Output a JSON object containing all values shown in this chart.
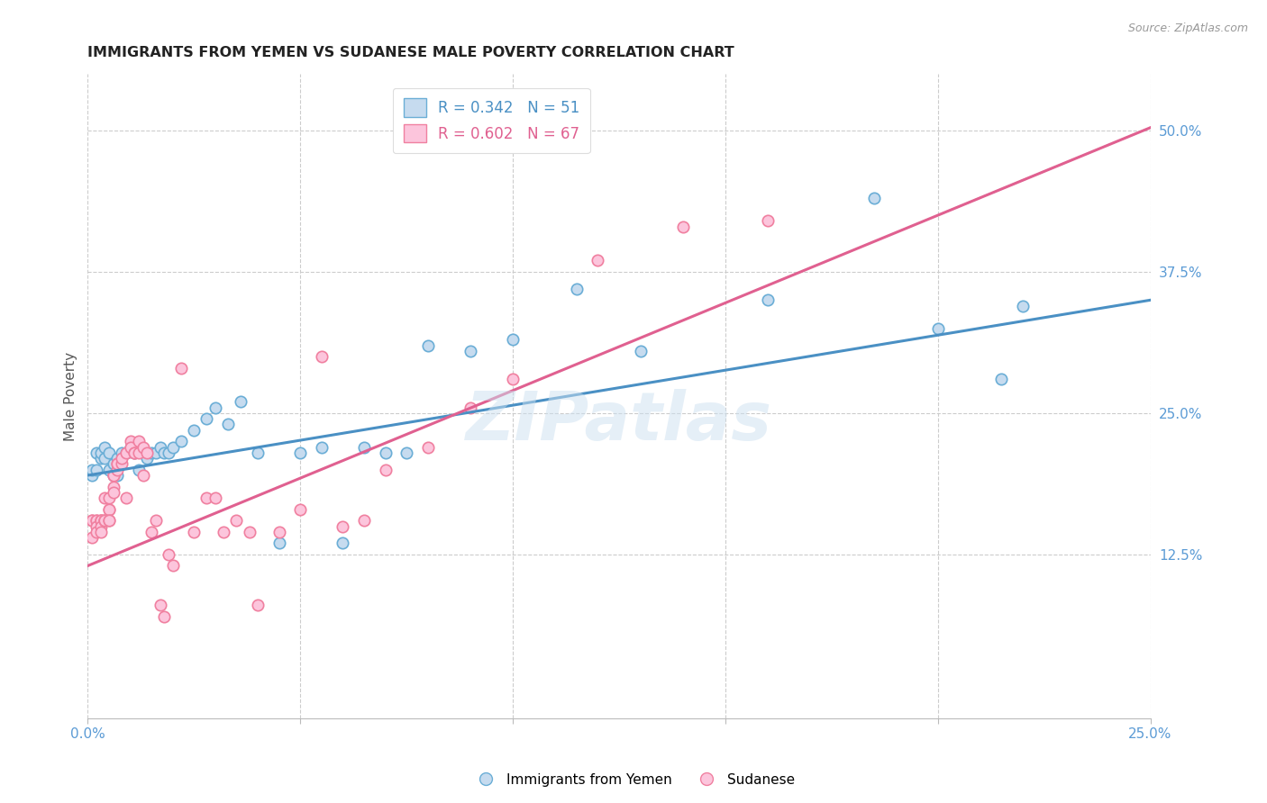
{
  "title": "IMMIGRANTS FROM YEMEN VS SUDANESE MALE POVERTY CORRELATION CHART",
  "source": "Source: ZipAtlas.com",
  "ylabel": "Male Poverty",
  "right_ytick_labels": [
    "50.0%",
    "37.5%",
    "25.0%",
    "12.5%"
  ],
  "right_ytick_values": [
    0.5,
    0.375,
    0.25,
    0.125
  ],
  "legend_blue_r": "R = 0.342",
  "legend_blue_n": "N = 51",
  "legend_pink_r": "R = 0.602",
  "legend_pink_n": "N = 67",
  "watermark": "ZIPatlas",
  "blue_color": "#6baed6",
  "blue_fill": "#c6dbef",
  "pink_color": "#f080a0",
  "pink_fill": "#fcc5dc",
  "trendline_blue": "#4a90c4",
  "trendline_pink": "#e06090",
  "trendline_dashed_color": "#f0b0c8",
  "xlim": [
    0.0,
    0.25
  ],
  "ylim": [
    -0.02,
    0.55
  ],
  "x_ticks": [
    0.0,
    0.05,
    0.1,
    0.15,
    0.2,
    0.25
  ],
  "x_tick_labels_show": [
    "0.0%",
    "",
    "",
    "",
    "",
    "25.0%"
  ],
  "blue_intercept": 0.195,
  "blue_slope": 0.62,
  "pink_intercept": 0.115,
  "pink_slope": 1.55,
  "blue_points_x": [
    0.001,
    0.001,
    0.002,
    0.002,
    0.003,
    0.003,
    0.004,
    0.004,
    0.005,
    0.005,
    0.006,
    0.006,
    0.007,
    0.007,
    0.008,
    0.009,
    0.01,
    0.011,
    0.012,
    0.013,
    0.014,
    0.015,
    0.016,
    0.017,
    0.018,
    0.019,
    0.02,
    0.022,
    0.025,
    0.028,
    0.03,
    0.033,
    0.036,
    0.04,
    0.045,
    0.05,
    0.055,
    0.06,
    0.065,
    0.07,
    0.075,
    0.08,
    0.09,
    0.1,
    0.115,
    0.13,
    0.16,
    0.185,
    0.2,
    0.215,
    0.22
  ],
  "blue_points_y": [
    0.195,
    0.2,
    0.2,
    0.215,
    0.21,
    0.215,
    0.21,
    0.22,
    0.2,
    0.215,
    0.205,
    0.195,
    0.21,
    0.195,
    0.215,
    0.215,
    0.22,
    0.215,
    0.2,
    0.215,
    0.21,
    0.215,
    0.215,
    0.22,
    0.215,
    0.215,
    0.22,
    0.225,
    0.235,
    0.245,
    0.255,
    0.24,
    0.26,
    0.215,
    0.135,
    0.215,
    0.22,
    0.135,
    0.22,
    0.215,
    0.215,
    0.31,
    0.305,
    0.315,
    0.36,
    0.305,
    0.35,
    0.44,
    0.325,
    0.28,
    0.345
  ],
  "pink_points_x": [
    0.001,
    0.001,
    0.001,
    0.002,
    0.002,
    0.002,
    0.002,
    0.003,
    0.003,
    0.003,
    0.003,
    0.003,
    0.004,
    0.004,
    0.004,
    0.004,
    0.005,
    0.005,
    0.005,
    0.005,
    0.005,
    0.006,
    0.006,
    0.006,
    0.006,
    0.007,
    0.007,
    0.007,
    0.008,
    0.008,
    0.009,
    0.009,
    0.01,
    0.01,
    0.011,
    0.011,
    0.012,
    0.012,
    0.013,
    0.013,
    0.014,
    0.015,
    0.016,
    0.017,
    0.018,
    0.019,
    0.02,
    0.022,
    0.025,
    0.028,
    0.03,
    0.032,
    0.035,
    0.038,
    0.04,
    0.045,
    0.05,
    0.055,
    0.06,
    0.065,
    0.07,
    0.08,
    0.09,
    0.1,
    0.12,
    0.14,
    0.16
  ],
  "pink_points_y": [
    0.155,
    0.155,
    0.14,
    0.155,
    0.155,
    0.15,
    0.145,
    0.155,
    0.155,
    0.155,
    0.15,
    0.145,
    0.155,
    0.155,
    0.155,
    0.175,
    0.165,
    0.165,
    0.155,
    0.155,
    0.175,
    0.185,
    0.195,
    0.195,
    0.18,
    0.2,
    0.205,
    0.205,
    0.205,
    0.21,
    0.175,
    0.215,
    0.225,
    0.22,
    0.215,
    0.215,
    0.225,
    0.215,
    0.22,
    0.195,
    0.215,
    0.145,
    0.155,
    0.08,
    0.07,
    0.125,
    0.115,
    0.29,
    0.145,
    0.175,
    0.175,
    0.145,
    0.155,
    0.145,
    0.08,
    0.145,
    0.165,
    0.3,
    0.15,
    0.155,
    0.2,
    0.22,
    0.255,
    0.28,
    0.385,
    0.415,
    0.42
  ]
}
